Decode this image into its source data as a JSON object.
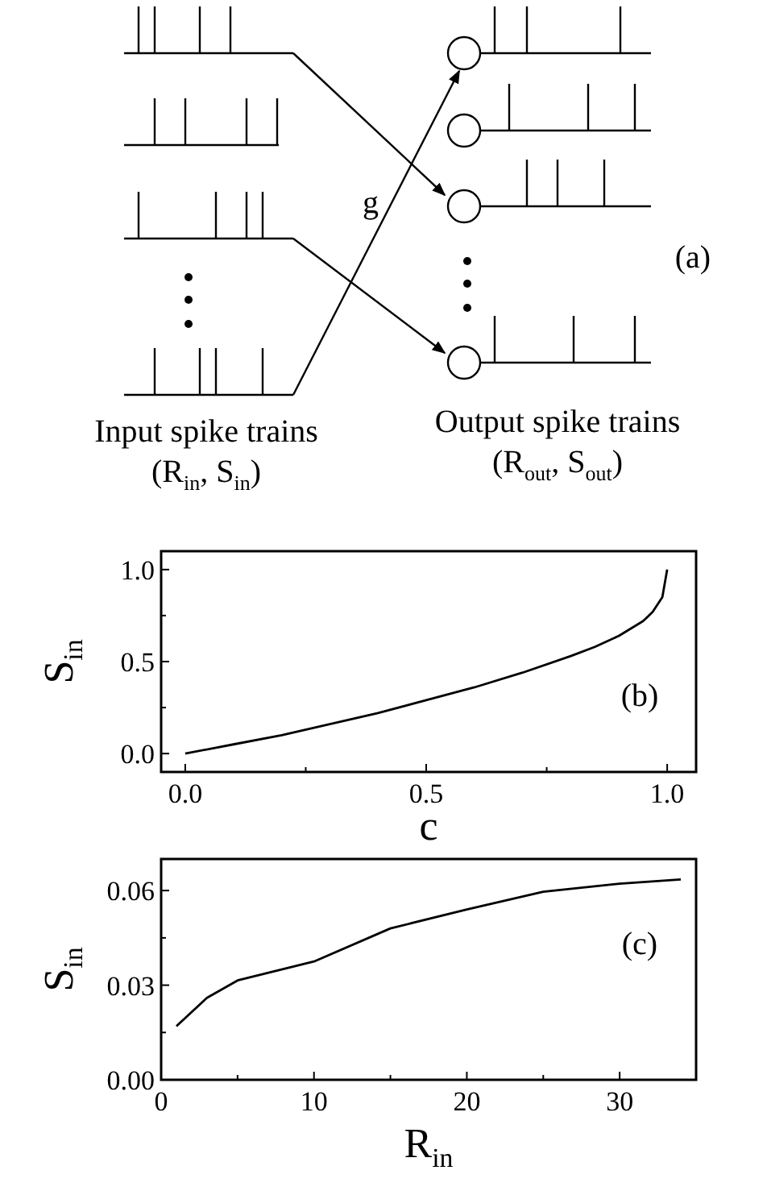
{
  "chart_data": [
    {
      "type": "other",
      "annotations": [
        "g",
        "(a)",
        "Input spike trains",
        "(R$_{in}$, S$_{in}$)",
        "Output spike trains",
        "(R$_{out}$, S$_{out}$)"
      ]
    },
    {
      "type": "line",
      "xlabel": "c",
      "ylabel": "S$_{in}$",
      "annotations": [
        "(b)"
      ],
      "xlim": [
        -0.05,
        1.06
      ],
      "ylim": [
        -0.1,
        1.1
      ],
      "xticks": [
        {
          "value": 0,
          "label": "0.0"
        },
        {
          "value": 0.25,
          "label": null
        },
        0.5,
        {
          "value": 0.75,
          "label": null
        },
        {
          "value": 1,
          "label": "1.0"
        }
      ],
      "yticks": [
        {
          "value": 0,
          "label": "0.0"
        },
        {
          "value": 0.25,
          "label": null
        },
        0.5,
        {
          "value": 0.75,
          "label": null
        },
        {
          "value": 1,
          "label": "1.0"
        }
      ],
      "grid": false,
      "series": [
        {
          "color": "#000000",
          "x": [
            0,
            0.1,
            0.2,
            0.3,
            0.4,
            0.5,
            0.6,
            0.7,
            0.8,
            0.85,
            0.9,
            0.95,
            0.97,
            0.99,
            1.0
          ],
          "values": [
            0,
            0.05,
            0.1,
            0.16,
            0.22,
            0.29,
            0.36,
            0.44,
            0.53,
            0.58,
            0.64,
            0.72,
            0.77,
            0.85,
            1.0
          ]
        }
      ]
    },
    {
      "type": "line",
      "xlabel": "R$_{in}$",
      "ylabel": "S$_{in}$",
      "annotations": [
        "(c)"
      ],
      "xlim": [
        0,
        35
      ],
      "ylim": [
        0,
        0.07
      ],
      "xticks": [
        0,
        {
          "value": 5,
          "label": null
        },
        10,
        {
          "value": 15,
          "label": null
        },
        20,
        {
          "value": 25,
          "label": null
        },
        30
      ],
      "yticks": [
        {
          "value": 0,
          "label": "0.00"
        },
        {
          "value": 0.015,
          "label": null
        },
        0.03,
        {
          "value": 0.045,
          "label": null
        },
        0.06
      ],
      "grid": false,
      "series": [
        {
          "color": "#000000",
          "x": [
            1,
            3,
            5,
            10,
            15,
            20,
            25,
            30,
            34
          ],
          "values": [
            0.017,
            0.026,
            0.0315,
            0.0375,
            0.048,
            0.054,
            0.0596,
            0.0622,
            0.0635
          ]
        }
      ]
    }
  ]
}
